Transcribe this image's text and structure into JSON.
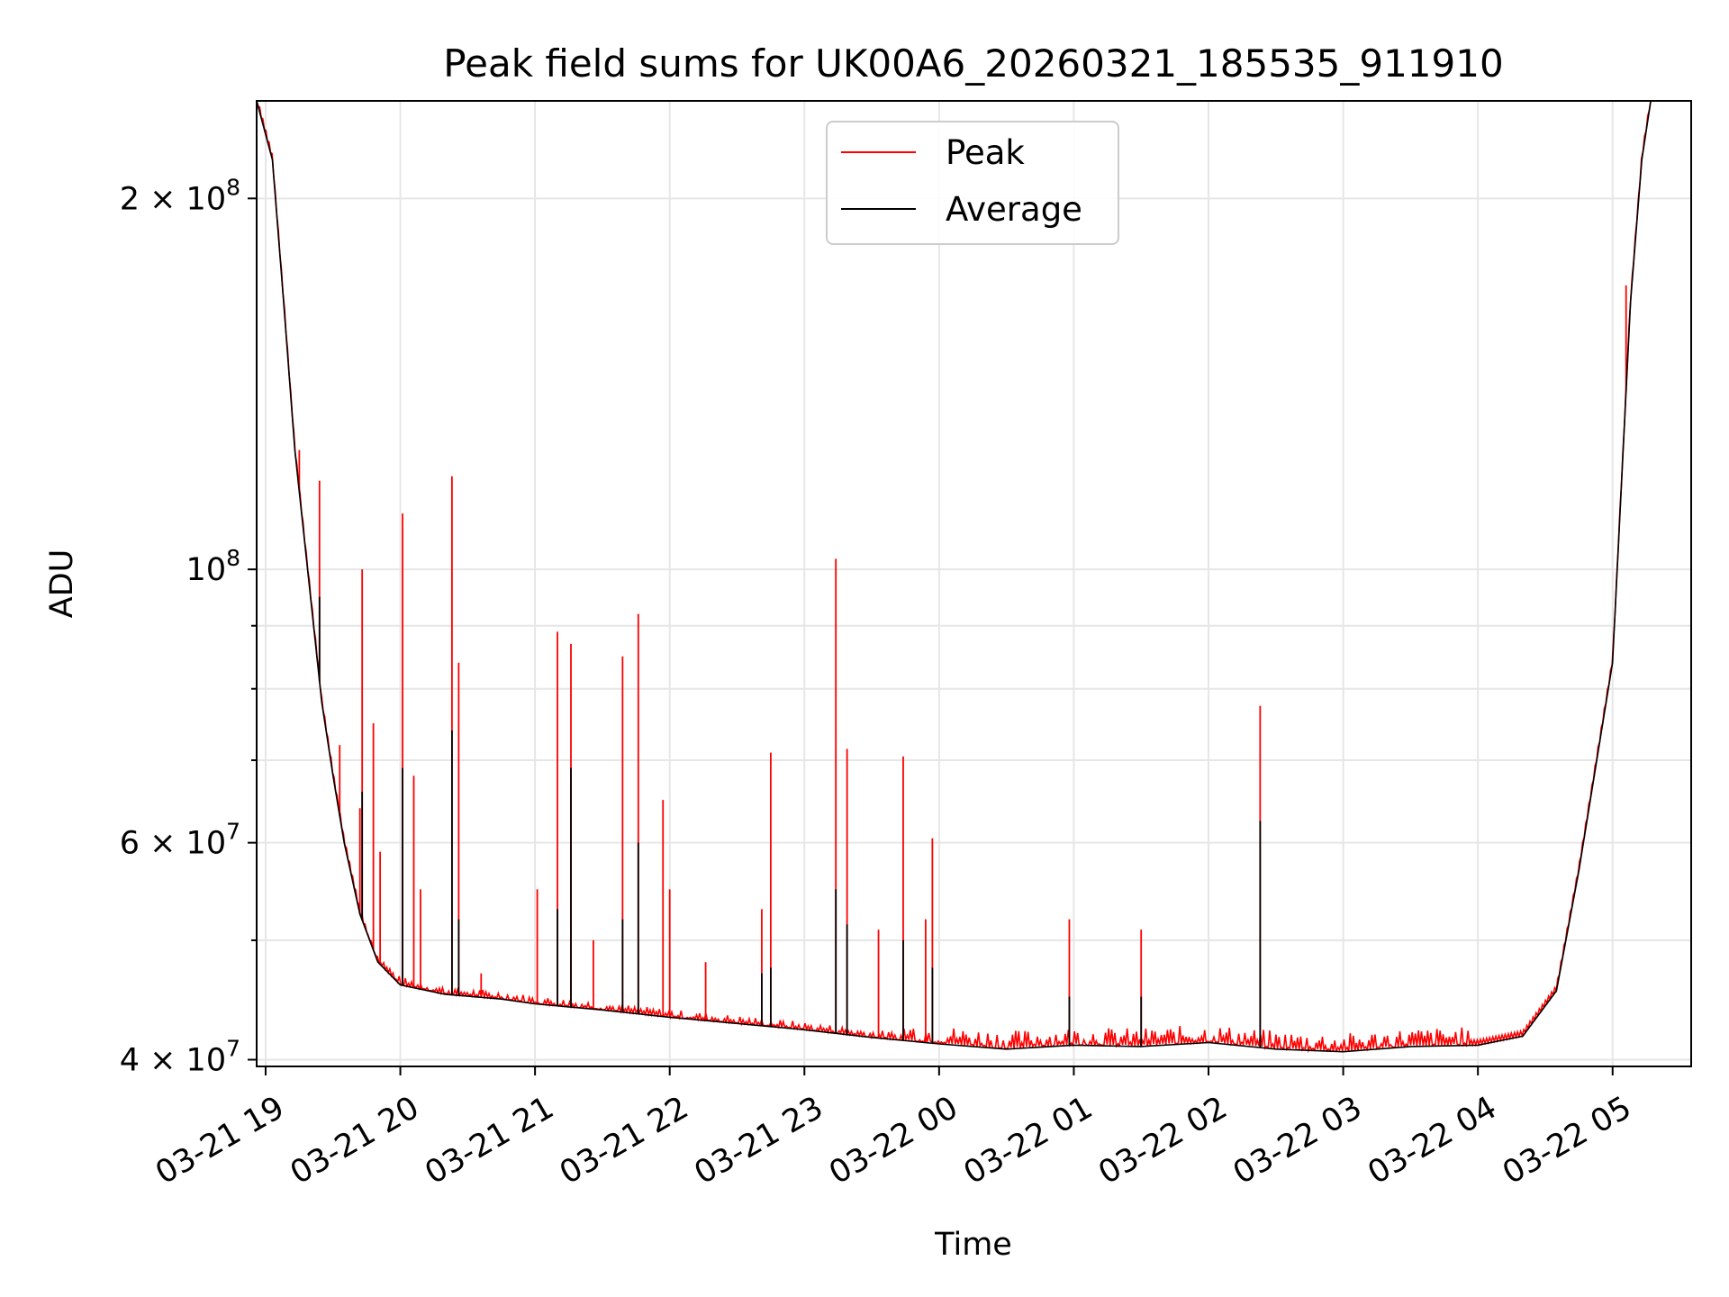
{
  "chart_data": {
    "type": "line",
    "title": "Peak field sums for UK00A6_20260321_185535_911910",
    "xlabel": "Time",
    "ylabel": "ADU",
    "yscale": "log",
    "ylim": [
      39500000,
      240000000
    ],
    "xlim": [
      "2026-03-21 18:56",
      "2026-03-22 05:35"
    ],
    "grid": true,
    "legend_position": "top-center",
    "x_ticks": [
      {
        "value": "2026-03-21 19:00",
        "label": "03-21 19"
      },
      {
        "value": "2026-03-21 20:00",
        "label": "03-21 20"
      },
      {
        "value": "2026-03-21 21:00",
        "label": "03-21 21"
      },
      {
        "value": "2026-03-21 22:00",
        "label": "03-21 22"
      },
      {
        "value": "2026-03-21 23:00",
        "label": "03-21 23"
      },
      {
        "value": "2026-03-22 00:00",
        "label": "03-22 00"
      },
      {
        "value": "2026-03-22 01:00",
        "label": "03-22 01"
      },
      {
        "value": "2026-03-22 02:00",
        "label": "03-22 02"
      },
      {
        "value": "2026-03-22 03:00",
        "label": "03-22 03"
      },
      {
        "value": "2026-03-22 04:00",
        "label": "03-22 04"
      },
      {
        "value": "2026-03-22 05:00",
        "label": "03-22 05"
      }
    ],
    "y_ticks_major": [
      {
        "value": 40000000,
        "mantissa": "4",
        "exp": "7"
      },
      {
        "value": 60000000,
        "mantissa": "6",
        "exp": "7"
      },
      {
        "value": 100000000,
        "mantissa": "",
        "exp": "8"
      },
      {
        "value": 200000000,
        "mantissa": "2",
        "exp": "8"
      }
    ],
    "y_ticks_minor": [
      50000000,
      70000000,
      80000000,
      90000000
    ],
    "series": [
      {
        "name": "Peak",
        "color": "#ff0000",
        "spikes": [
          {
            "x": "2026-03-21 19:15",
            "y": 125000000
          },
          {
            "x": "2026-03-21 19:24",
            "y": 118000000
          },
          {
            "x": "2026-03-21 19:33",
            "y": 72000000
          },
          {
            "x": "2026-03-21 19:42",
            "y": 64000000
          },
          {
            "x": "2026-03-21 19:43",
            "y": 100000000
          },
          {
            "x": "2026-03-21 19:48",
            "y": 75000000
          },
          {
            "x": "2026-03-21 19:51",
            "y": 59000000
          },
          {
            "x": "2026-03-21 20:01",
            "y": 111000000
          },
          {
            "x": "2026-03-21 20:06",
            "y": 68000000
          },
          {
            "x": "2026-03-21 20:09",
            "y": 55000000
          },
          {
            "x": "2026-03-21 20:23",
            "y": 119000000
          },
          {
            "x": "2026-03-21 20:26",
            "y": 84000000
          },
          {
            "x": "2026-03-21 20:36",
            "y": 47000000
          },
          {
            "x": "2026-03-21 21:01",
            "y": 55000000
          },
          {
            "x": "2026-03-21 21:10",
            "y": 89000000
          },
          {
            "x": "2026-03-21 21:16",
            "y": 87000000
          },
          {
            "x": "2026-03-21 21:26",
            "y": 50000000
          },
          {
            "x": "2026-03-21 21:39",
            "y": 85000000
          },
          {
            "x": "2026-03-21 21:46",
            "y": 92000000
          },
          {
            "x": "2026-03-21 21:57",
            "y": 65000000
          },
          {
            "x": "2026-03-21 22:00",
            "y": 55000000
          },
          {
            "x": "2026-03-21 22:16",
            "y": 48000000
          },
          {
            "x": "2026-03-21 22:41",
            "y": 53000000
          },
          {
            "x": "2026-03-21 22:45",
            "y": 71000000
          },
          {
            "x": "2026-03-21 23:14",
            "y": 102000000
          },
          {
            "x": "2026-03-21 23:19",
            "y": 71500000
          },
          {
            "x": "2026-03-21 23:33",
            "y": 51000000
          },
          {
            "x": "2026-03-21 23:44",
            "y": 70500000
          },
          {
            "x": "2026-03-21 23:54",
            "y": 52000000
          },
          {
            "x": "2026-03-21 23:57",
            "y": 60500000
          },
          {
            "x": "2026-03-22 00:58",
            "y": 52000000
          },
          {
            "x": "2026-03-22 01:30",
            "y": 51000000
          },
          {
            "x": "2026-03-22 02:23",
            "y": 77500000
          },
          {
            "x": "2026-03-22 05:06",
            "y": 170000000
          }
        ]
      },
      {
        "name": "Average",
        "color": "#000000",
        "points": [
          {
            "x": "2026-03-21 18:56",
            "y": 240000000
          },
          {
            "x": "2026-03-21 19:03",
            "y": 215000000
          },
          {
            "x": "2026-03-21 19:08",
            "y": 165000000
          },
          {
            "x": "2026-03-21 19:13",
            "y": 125000000
          },
          {
            "x": "2026-03-21 19:20",
            "y": 95000000
          },
          {
            "x": "2026-03-21 19:25",
            "y": 78000000
          },
          {
            "x": "2026-03-21 19:30",
            "y": 68000000
          },
          {
            "x": "2026-03-21 19:35",
            "y": 60000000
          },
          {
            "x": "2026-03-21 19:42",
            "y": 52500000
          },
          {
            "x": "2026-03-21 19:50",
            "y": 48000000
          },
          {
            "x": "2026-03-21 20:00",
            "y": 46000000
          },
          {
            "x": "2026-03-21 20:20",
            "y": 45200000
          },
          {
            "x": "2026-03-21 20:45",
            "y": 44800000
          },
          {
            "x": "2026-03-21 21:00",
            "y": 44400000
          },
          {
            "x": "2026-03-21 21:30",
            "y": 43900000
          },
          {
            "x": "2026-03-21 22:00",
            "y": 43300000
          },
          {
            "x": "2026-03-21 22:30",
            "y": 42800000
          },
          {
            "x": "2026-03-21 23:00",
            "y": 42300000
          },
          {
            "x": "2026-03-21 23:30",
            "y": 41700000
          },
          {
            "x": "2026-03-22 00:00",
            "y": 41200000
          },
          {
            "x": "2026-03-22 00:30",
            "y": 40800000
          },
          {
            "x": "2026-03-22 01:00",
            "y": 41100000
          },
          {
            "x": "2026-03-22 01:30",
            "y": 41000000
          },
          {
            "x": "2026-03-22 02:00",
            "y": 41300000
          },
          {
            "x": "2026-03-22 02:30",
            "y": 40800000
          },
          {
            "x": "2026-03-22 03:00",
            "y": 40600000
          },
          {
            "x": "2026-03-22 03:30",
            "y": 41000000
          },
          {
            "x": "2026-03-22 04:00",
            "y": 41100000
          },
          {
            "x": "2026-03-22 04:20",
            "y": 41800000
          },
          {
            "x": "2026-03-22 04:35",
            "y": 45500000
          },
          {
            "x": "2026-03-22 04:45",
            "y": 57000000
          },
          {
            "x": "2026-03-22 05:00",
            "y": 84000000
          },
          {
            "x": "2026-03-22 05:08",
            "y": 165000000
          },
          {
            "x": "2026-03-22 05:13",
            "y": 215000000
          },
          {
            "x": "2026-03-22 05:17",
            "y": 240000000
          }
        ],
        "spikes": [
          {
            "x": "2026-03-21 19:24",
            "y": 95000000
          },
          {
            "x": "2026-03-21 19:43",
            "y": 66000000
          },
          {
            "x": "2026-03-21 20:01",
            "y": 69000000
          },
          {
            "x": "2026-03-21 20:23",
            "y": 74000000
          },
          {
            "x": "2026-03-21 20:26",
            "y": 52000000
          },
          {
            "x": "2026-03-21 21:10",
            "y": 53000000
          },
          {
            "x": "2026-03-21 21:16",
            "y": 69000000
          },
          {
            "x": "2026-03-21 21:39",
            "y": 52000000
          },
          {
            "x": "2026-03-21 21:46",
            "y": 60000000
          },
          {
            "x": "2026-03-21 22:41",
            "y": 47000000
          },
          {
            "x": "2026-03-21 22:45",
            "y": 47500000
          },
          {
            "x": "2026-03-21 23:14",
            "y": 55000000
          },
          {
            "x": "2026-03-21 23:19",
            "y": 51500000
          },
          {
            "x": "2026-03-21 23:44",
            "y": 50000000
          },
          {
            "x": "2026-03-21 23:57",
            "y": 47500000
          },
          {
            "x": "2026-03-22 00:58",
            "y": 45000000
          },
          {
            "x": "2026-03-22 01:30",
            "y": 45000000
          },
          {
            "x": "2026-03-22 02:23",
            "y": 62500000
          }
        ]
      }
    ]
  }
}
